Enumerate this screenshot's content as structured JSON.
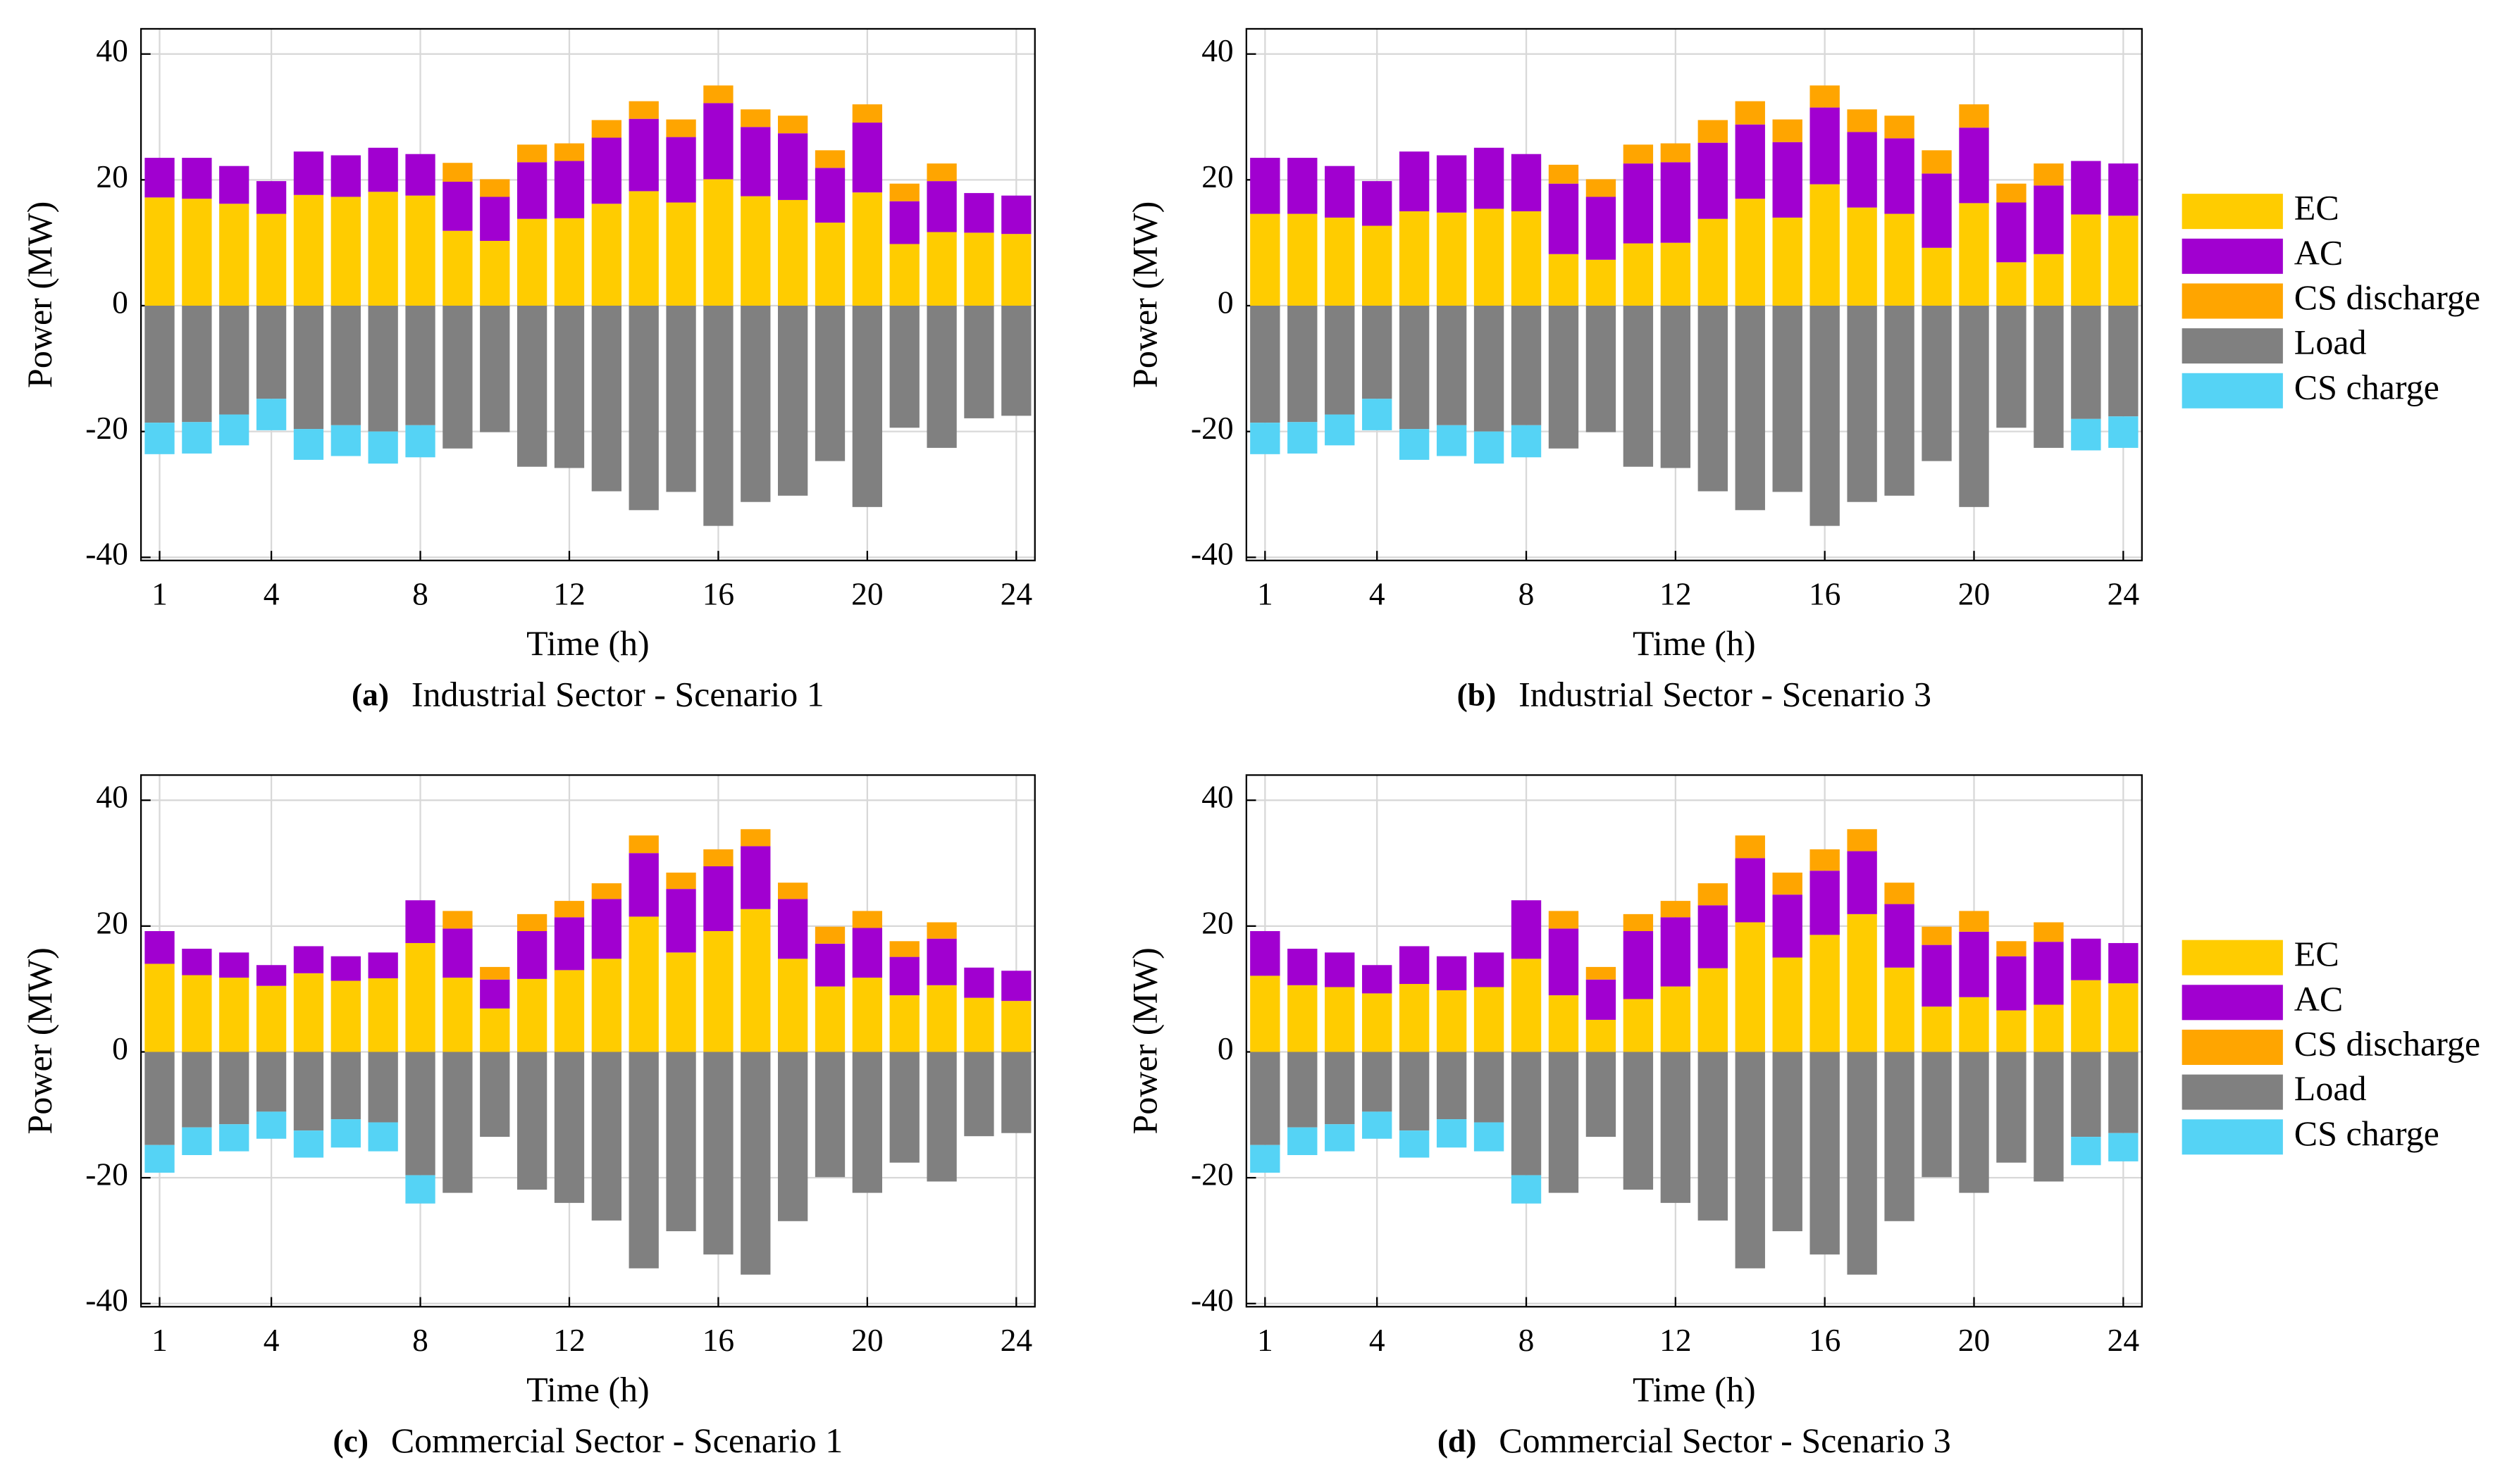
{
  "chart_data": [
    {
      "type": "bar",
      "stacked": true,
      "label": "(a)",
      "title": "Industrial Sector - Scenario 1",
      "xlabel": "Time (h)",
      "ylabel": "Power (MW)",
      "x": [
        1,
        2,
        3,
        4,
        5,
        6,
        7,
        8,
        9,
        10,
        11,
        12,
        13,
        14,
        15,
        16,
        17,
        18,
        19,
        20,
        21,
        22,
        23,
        24
      ],
      "xlim": [
        0.5,
        24.5
      ],
      "xticks": [
        1,
        4,
        8,
        12,
        16,
        20,
        24
      ],
      "ylim": [
        -40.5,
        44
      ],
      "yticks": [
        -40,
        -20,
        0,
        20,
        40
      ],
      "grid": true,
      "legend": "none",
      "series": [
        {
          "name": "EC",
          "color": "#ffcc00",
          "values": [
            17.2,
            17.0,
            16.2,
            14.6,
            17.6,
            17.3,
            18.1,
            17.5,
            11.9,
            10.3,
            13.8,
            13.9,
            16.2,
            18.2,
            16.4,
            20.1,
            17.4,
            16.8,
            13.2,
            18.0,
            9.8,
            11.7,
            11.6,
            11.4
          ]
        },
        {
          "name": "AC",
          "color": "#a100d0",
          "values": [
            6.3,
            6.5,
            6.0,
            5.2,
            6.9,
            6.6,
            7.0,
            6.6,
            7.8,
            7.0,
            9.0,
            9.1,
            10.5,
            11.5,
            10.4,
            12.1,
            11.0,
            10.6,
            8.7,
            11.1,
            6.8,
            8.1,
            6.3,
            6.1
          ]
        },
        {
          "name": "CS discharge",
          "color": "#ffa500",
          "values": [
            0,
            0,
            0,
            0,
            0,
            0,
            0,
            0,
            3.0,
            2.8,
            2.8,
            2.8,
            2.8,
            2.8,
            2.8,
            2.8,
            2.8,
            2.8,
            2.8,
            2.9,
            2.8,
            2.8,
            0,
            0
          ]
        },
        {
          "name": "Load",
          "color": "#808080",
          "values": [
            -18.6,
            -18.5,
            -17.3,
            -14.8,
            -19.6,
            -19.0,
            -20.0,
            -19.0,
            -22.7,
            -20.1,
            -25.6,
            -25.8,
            -29.5,
            -32.5,
            -29.6,
            -35.0,
            -31.2,
            -30.2,
            -24.7,
            -32.0,
            -19.4,
            -22.6,
            -17.9,
            -17.5
          ]
        },
        {
          "name": "CS charge",
          "color": "#55d3f5",
          "values": [
            -5.0,
            -5.0,
            -4.9,
            -5.0,
            -4.9,
            -4.9,
            -5.1,
            -5.1,
            0,
            0,
            0,
            0,
            0,
            0,
            0,
            0,
            0,
            0,
            0,
            0,
            0,
            0,
            0,
            0
          ]
        }
      ]
    },
    {
      "type": "bar",
      "stacked": true,
      "label": "(b)",
      "title": "Industrial Sector - Scenario 3",
      "xlabel": "Time (h)",
      "ylabel": "Power (MW)",
      "x": [
        1,
        2,
        3,
        4,
        5,
        6,
        7,
        8,
        9,
        10,
        11,
        12,
        13,
        14,
        15,
        16,
        17,
        18,
        19,
        20,
        21,
        22,
        23,
        24
      ],
      "xlim": [
        0.5,
        24.5
      ],
      "xticks": [
        1,
        4,
        8,
        12,
        16,
        20,
        24
      ],
      "ylim": [
        -40.5,
        44
      ],
      "yticks": [
        -40,
        -20,
        0,
        20,
        40
      ],
      "grid": true,
      "legend": "right",
      "series": [
        {
          "name": "EC",
          "color": "#ffcc00",
          "values": [
            14.6,
            14.6,
            14.0,
            12.7,
            15.0,
            14.8,
            15.4,
            15.0,
            8.2,
            7.3,
            9.9,
            10.0,
            13.8,
            17.0,
            14.0,
            19.3,
            15.6,
            14.6,
            9.2,
            16.3,
            6.9,
            8.2,
            14.5,
            14.3
          ]
        },
        {
          "name": "AC",
          "color": "#a100d0",
          "values": [
            8.9,
            8.9,
            8.2,
            7.1,
            9.5,
            9.1,
            9.7,
            9.1,
            11.2,
            10.0,
            12.7,
            12.8,
            12.1,
            11.8,
            12.0,
            12.2,
            12.0,
            12.0,
            11.8,
            12.0,
            9.5,
            10.9,
            8.5,
            8.3
          ]
        },
        {
          "name": "CS discharge",
          "color": "#ffa500",
          "values": [
            0,
            0,
            0,
            0,
            0,
            0,
            0,
            0,
            3.0,
            2.8,
            3.0,
            3.0,
            3.6,
            3.7,
            3.6,
            3.5,
            3.6,
            3.6,
            3.7,
            3.7,
            3.0,
            3.5,
            0,
            0
          ]
        },
        {
          "name": "Load",
          "color": "#808080",
          "values": [
            -18.6,
            -18.5,
            -17.3,
            -14.8,
            -19.6,
            -19.0,
            -20.0,
            -19.0,
            -22.7,
            -20.1,
            -25.6,
            -25.8,
            -29.5,
            -32.5,
            -29.6,
            -35.0,
            -31.2,
            -30.2,
            -24.7,
            -32.0,
            -19.4,
            -22.6,
            -18.0,
            -17.6
          ]
        },
        {
          "name": "CS charge",
          "color": "#55d3f5",
          "values": [
            -5.0,
            -5.0,
            -4.9,
            -5.0,
            -4.9,
            -4.9,
            -5.1,
            -5.1,
            0,
            0,
            0,
            0,
            0,
            0,
            0,
            0,
            0,
            0,
            0,
            0,
            0,
            0,
            -5.0,
            -5.0
          ]
        }
      ]
    },
    {
      "type": "bar",
      "stacked": true,
      "label": "(c)",
      "title": "Commercial Sector - Scenario 1",
      "xlabel": "Time (h)",
      "ylabel": "Power (MW)",
      "x": [
        1,
        2,
        3,
        4,
        5,
        6,
        7,
        8,
        9,
        10,
        11,
        12,
        13,
        14,
        15,
        16,
        17,
        18,
        19,
        20,
        21,
        22,
        23,
        24
      ],
      "xlim": [
        0.5,
        24.5
      ],
      "xticks": [
        1,
        4,
        8,
        12,
        16,
        20,
        24
      ],
      "ylim": [
        -40.5,
        44
      ],
      "yticks": [
        -40,
        -20,
        0,
        20,
        40
      ],
      "grid": true,
      "legend": "none",
      "series": [
        {
          "name": "EC",
          "color": "#ffcc00",
          "values": [
            14.0,
            12.2,
            11.8,
            10.5,
            12.5,
            11.3,
            11.7,
            17.3,
            11.8,
            6.9,
            11.6,
            13.0,
            14.8,
            21.5,
            15.8,
            19.2,
            22.7,
            14.8,
            10.4,
            11.8,
            9.0,
            10.6,
            8.6,
            8.1
          ]
        },
        {
          "name": "AC",
          "color": "#a100d0",
          "values": [
            5.2,
            4.2,
            4.0,
            3.3,
            4.3,
            3.9,
            4.1,
            6.8,
            7.8,
            4.6,
            7.6,
            8.4,
            9.5,
            10.1,
            10.1,
            10.3,
            10.0,
            9.5,
            6.8,
            7.9,
            6.1,
            7.4,
            4.8,
            4.8
          ]
        },
        {
          "name": "CS discharge",
          "color": "#ffa500",
          "values": [
            0,
            0,
            0,
            0,
            0,
            0,
            0,
            0,
            2.8,
            2.0,
            2.7,
            2.6,
            2.5,
            2.8,
            2.6,
            2.7,
            2.7,
            2.6,
            2.7,
            2.7,
            2.5,
            2.6,
            0,
            0
          ]
        },
        {
          "name": "Load",
          "color": "#808080",
          "values": [
            -14.8,
            -12.0,
            -11.5,
            -9.5,
            -12.5,
            -10.7,
            -11.2,
            -19.6,
            -22.4,
            -13.5,
            -21.9,
            -24.0,
            -26.8,
            -34.4,
            -28.5,
            -32.2,
            -35.4,
            -26.9,
            -19.9,
            -22.4,
            -17.6,
            -20.6,
            -13.4,
            -12.9
          ]
        },
        {
          "name": "CS charge",
          "color": "#55d3f5",
          "values": [
            -4.4,
            -4.4,
            -4.3,
            -4.3,
            -4.3,
            -4.5,
            -4.6,
            -4.5,
            0,
            0,
            0,
            0,
            0,
            0,
            0,
            0,
            0,
            0,
            0,
            0,
            0,
            0,
            0,
            0
          ]
        }
      ]
    },
    {
      "type": "bar",
      "stacked": true,
      "label": "(d)",
      "title": "Commercial Sector - Scenario 3",
      "xlabel": "Time (h)",
      "ylabel": "Power (MW)",
      "x": [
        1,
        2,
        3,
        4,
        5,
        6,
        7,
        8,
        9,
        10,
        11,
        12,
        13,
        14,
        15,
        16,
        17,
        18,
        19,
        20,
        21,
        22,
        23,
        24
      ],
      "xlim": [
        0.5,
        24.5
      ],
      "xticks": [
        1,
        4,
        8,
        12,
        16,
        20,
        24
      ],
      "ylim": [
        -40.5,
        44
      ],
      "yticks": [
        -40,
        -20,
        0,
        20,
        40
      ],
      "grid": true,
      "legend": "right",
      "series": [
        {
          "name": "EC",
          "color": "#ffcc00",
          "values": [
            12.1,
            10.6,
            10.3,
            9.3,
            10.8,
            9.8,
            10.3,
            14.8,
            9.0,
            5.1,
            8.4,
            10.4,
            13.3,
            20.6,
            15.0,
            18.6,
            21.9,
            13.4,
            7.2,
            8.7,
            6.6,
            7.5,
            11.4,
            10.9
          ]
        },
        {
          "name": "AC",
          "color": "#a100d0",
          "values": [
            7.1,
            5.8,
            5.5,
            4.5,
            6.0,
            5.4,
            5.5,
            9.3,
            10.6,
            6.4,
            10.8,
            11.0,
            10.0,
            10.2,
            10.0,
            10.2,
            10.0,
            10.1,
            9.8,
            10.4,
            8.6,
            10.0,
            6.6,
            6.4
          ]
        },
        {
          "name": "CS discharge",
          "color": "#ffa500",
          "values": [
            0,
            0,
            0,
            0,
            0,
            0,
            0,
            0,
            2.8,
            2.0,
            2.7,
            2.6,
            3.5,
            3.6,
            3.5,
            3.4,
            3.5,
            3.4,
            2.9,
            3.3,
            2.4,
            3.1,
            0,
            0
          ]
        },
        {
          "name": "Load",
          "color": "#808080",
          "values": [
            -14.8,
            -12.0,
            -11.5,
            -9.5,
            -12.5,
            -10.7,
            -11.2,
            -19.6,
            -22.4,
            -13.5,
            -21.9,
            -24.0,
            -26.8,
            -34.4,
            -28.5,
            -32.2,
            -35.4,
            -26.9,
            -19.9,
            -22.4,
            -17.6,
            -20.6,
            -13.5,
            -12.9
          ]
        },
        {
          "name": "CS charge",
          "color": "#55d3f5",
          "values": [
            -4.4,
            -4.4,
            -4.3,
            -4.3,
            -4.3,
            -4.5,
            -4.6,
            -4.5,
            0,
            0,
            0,
            0,
            0,
            0,
            0,
            0,
            0,
            0,
            0,
            0,
            0,
            0,
            -4.5,
            -4.5
          ]
        }
      ]
    }
  ]
}
